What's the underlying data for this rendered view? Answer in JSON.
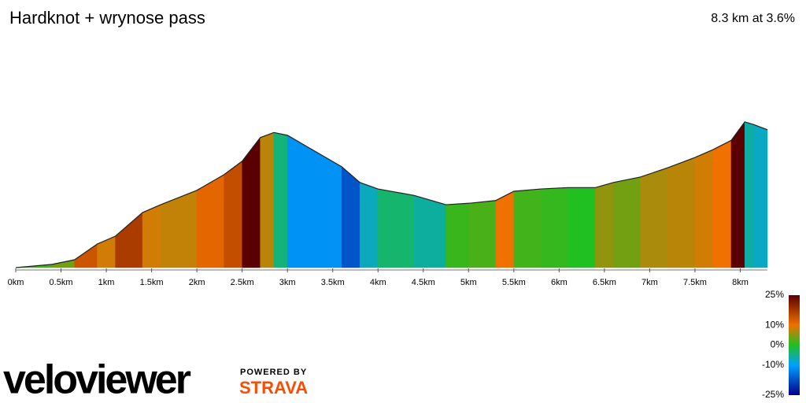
{
  "chart_data": {
    "type": "elevation",
    "title": "Hardknot + wrynose pass",
    "subtitle": "8.3 km at 3.6%",
    "x": [
      0,
      0.4,
      0.65,
      0.9,
      1.1,
      1.4,
      1.6,
      2.0,
      2.3,
      2.5,
      2.7,
      2.85,
      3.0,
      3.3,
      3.6,
      3.8,
      4.0,
      4.4,
      4.75,
      5.0,
      5.3,
      5.5,
      5.8,
      6.1,
      6.4,
      6.6,
      6.9,
      7.2,
      7.5,
      7.7,
      7.9,
      8.05,
      8.15,
      8.3
    ],
    "values": [
      90,
      97,
      107,
      141,
      158,
      209,
      226,
      257,
      291,
      320,
      371,
      382,
      376,
      342,
      308,
      274,
      260,
      246,
      226,
      229,
      235,
      255,
      260,
      263,
      263,
      274,
      286,
      306,
      328,
      345,
      365,
      405,
      399,
      388
    ],
    "xlim": [
      0,
      8.3
    ],
    "ylim": [
      90,
      420
    ],
    "xticks": [
      {
        "value": 0,
        "label": "0km"
      },
      {
        "value": 0.5,
        "label": "0.5km"
      },
      {
        "value": 1,
        "label": "1km"
      },
      {
        "value": 1.5,
        "label": "1.5km"
      },
      {
        "value": 2,
        "label": "2km"
      },
      {
        "value": 2.5,
        "label": "2.5km"
      },
      {
        "value": 3,
        "label": "3km"
      },
      {
        "value": 3.5,
        "label": "3.5km"
      },
      {
        "value": 4,
        "label": "4km"
      },
      {
        "value": 4.5,
        "label": "4.5km"
      },
      {
        "value": 5,
        "label": "5km"
      },
      {
        "value": 5.5,
        "label": "5.5km"
      },
      {
        "value": 6,
        "label": "6km"
      },
      {
        "value": 6.5,
        "label": "6.5km"
      },
      {
        "value": 7,
        "label": "7km"
      },
      {
        "value": 7.5,
        "label": "7.5km"
      },
      {
        "value": 8,
        "label": "8km"
      }
    ],
    "colorbar_ticks": [
      {
        "value": 25,
        "label": "25%"
      },
      {
        "value": 10,
        "label": "10%"
      },
      {
        "value": 0,
        "label": "0%"
      },
      {
        "value": -10,
        "label": "-10%"
      },
      {
        "value": -25,
        "label": "-25%"
      }
    ],
    "colorbar_colors": [
      "#5a0000",
      "#f07000",
      "#20c020",
      "#00a0ff",
      "#00008a"
    ],
    "logo": "veloviewer",
    "powered_by": "POWERED BY",
    "brand": "STRAVA"
  }
}
